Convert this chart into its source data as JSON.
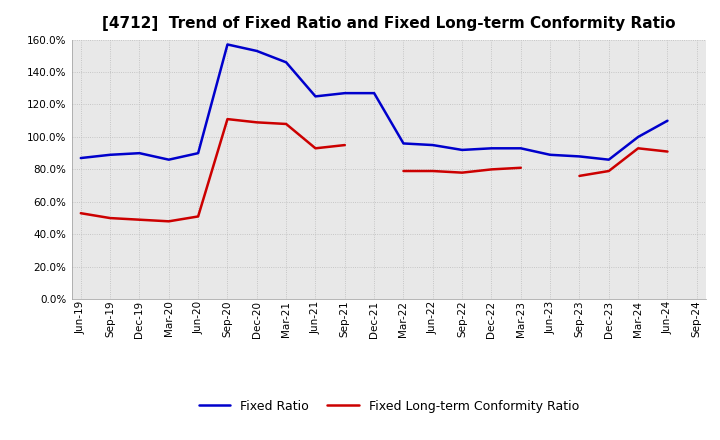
{
  "title": "[4712]  Trend of Fixed Ratio and Fixed Long-term Conformity Ratio",
  "x_labels": [
    "Jun-19",
    "Sep-19",
    "Dec-19",
    "Mar-20",
    "Jun-20",
    "Sep-20",
    "Dec-20",
    "Mar-21",
    "Jun-21",
    "Sep-21",
    "Dec-21",
    "Mar-22",
    "Jun-22",
    "Sep-22",
    "Dec-22",
    "Mar-23",
    "Jun-23",
    "Sep-23",
    "Dec-23",
    "Mar-24",
    "Jun-24",
    "Sep-24"
  ],
  "fixed_ratio": [
    87,
    89,
    90,
    86,
    90,
    157,
    153,
    146,
    125,
    127,
    127,
    96,
    95,
    92,
    93,
    93,
    89,
    88,
    86,
    100,
    110,
    null
  ],
  "fixed_lt_ratio": [
    53,
    50,
    49,
    48,
    51,
    111,
    109,
    108,
    93,
    95,
    null,
    79,
    79,
    78,
    80,
    81,
    null,
    76,
    79,
    93,
    91,
    null
  ],
  "fixed_ratio_color": "#0000cc",
  "fixed_lt_ratio_color": "#cc0000",
  "ylim": [
    0,
    160
  ],
  "yticks": [
    0,
    20,
    40,
    60,
    80,
    100,
    120,
    140,
    160
  ],
  "plot_bg_color": "#e8e8e8",
  "fig_bg_color": "#ffffff",
  "grid_color": "#bbbbbb",
  "title_fontsize": 11,
  "tick_fontsize": 7.5,
  "legend_fixed_ratio": "Fixed Ratio",
  "legend_fixed_lt_ratio": "Fixed Long-term Conformity Ratio"
}
